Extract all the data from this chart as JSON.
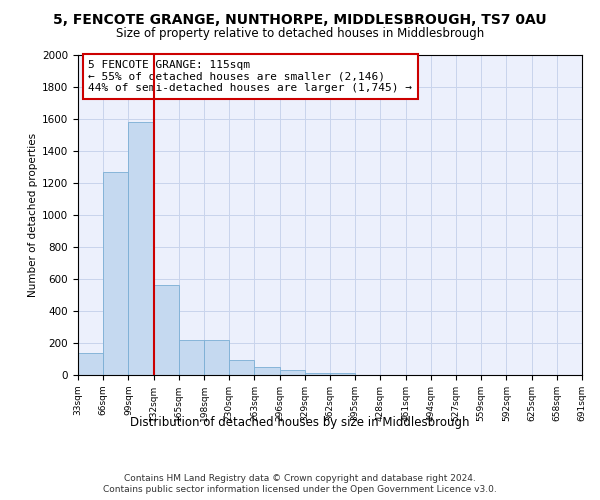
{
  "title": "5, FENCOTE GRANGE, NUNTHORPE, MIDDLESBROUGH, TS7 0AU",
  "subtitle": "Size of property relative to detached houses in Middlesbrough",
  "xlabel": "Distribution of detached houses by size in Middlesbrough",
  "ylabel": "Number of detached properties",
  "bar_color": "#c5d9f0",
  "bar_edge_color": "#7aaed4",
  "bar_values": [
    140,
    1270,
    1580,
    560,
    220,
    220,
    95,
    50,
    30,
    15,
    15,
    0,
    0,
    0,
    0,
    0,
    0,
    0,
    0,
    0
  ],
  "x_labels": [
    "33sqm",
    "66sqm",
    "99sqm",
    "132sqm",
    "165sqm",
    "198sqm",
    "230sqm",
    "263sqm",
    "296sqm",
    "329sqm",
    "362sqm",
    "395sqm",
    "428sqm",
    "461sqm",
    "494sqm",
    "527sqm",
    "559sqm",
    "592sqm",
    "625sqm",
    "658sqm",
    "691sqm"
  ],
  "ylim": [
    0,
    2000
  ],
  "yticks": [
    0,
    200,
    400,
    600,
    800,
    1000,
    1200,
    1400,
    1600,
    1800,
    2000
  ],
  "annotation_title": "5 FENCOTE GRANGE: 115sqm",
  "annotation_line1": "← 55% of detached houses are smaller (2,146)",
  "annotation_line2": "44% of semi-detached houses are larger (1,745) →",
  "footer_line1": "Contains HM Land Registry data © Crown copyright and database right 2024.",
  "footer_line2": "Contains public sector information licensed under the Open Government Licence v3.0.",
  "background_color": "#ecf0fc",
  "grid_color": "#c8d4ec",
  "red_line_x": 2.5
}
